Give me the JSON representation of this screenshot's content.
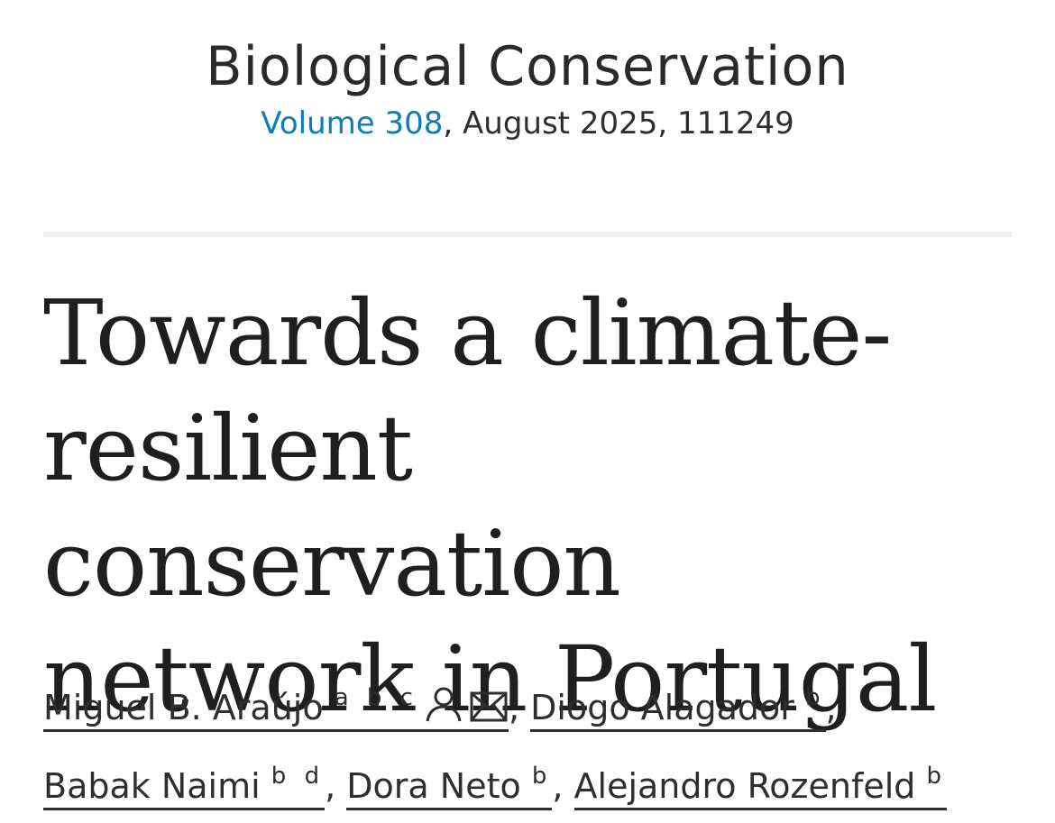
{
  "journal": {
    "name": "Biological Conservation",
    "volume_label": "Volume 308",
    "issue_rest": ", August 2025, 111249"
  },
  "article": {
    "title": "Towards a climate-resilient conservation network in Portugal"
  },
  "authors": [
    {
      "name": "Miguel B. Araújo",
      "affiliations": "a b c",
      "icons": [
        "person-icon",
        "envelope-icon"
      ]
    },
    {
      "name": "Diogo Alagador",
      "affiliations": "b"
    },
    {
      "name": "Babak Naimi",
      "affiliations": "b d"
    },
    {
      "name": "Dora Neto",
      "affiliations": "b"
    },
    {
      "name": "Alejandro Rozenfeld",
      "affiliations": "b"
    }
  ],
  "separator": ",",
  "colors": {
    "link": "#0c7dbb",
    "text": "#222222",
    "divider": "#eeeeee"
  }
}
